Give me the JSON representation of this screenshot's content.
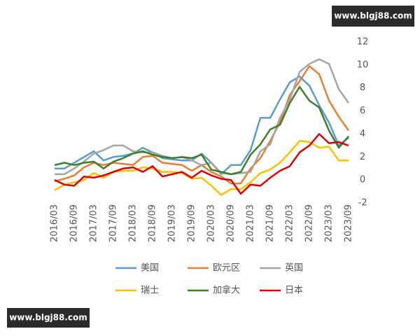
{
  "watermarks": [
    "www.blgj88.com",
    "www.blgj88.com"
  ],
  "chart_data": {
    "type": "line",
    "categories": [
      "2016/03",
      null,
      "2016/09",
      null,
      "2017/03",
      null,
      "2017/09",
      null,
      "2018/03",
      null,
      "2018/09",
      null,
      "2019/03",
      null,
      "2019/09",
      null,
      "2020/03",
      null,
      "2020/09",
      null,
      "2021/03",
      null,
      "2021/09",
      null,
      "2022/03",
      null,
      "2022/09",
      null,
      "2023/03",
      null,
      "2023/09"
    ],
    "ylim": [
      -2,
      12
    ],
    "yticks": [
      -2,
      0,
      2,
      4,
      6,
      8,
      10,
      12
    ],
    "grid": false,
    "series": [
      {
        "name": "美国",
        "color": "#5b9bd5",
        "values": [
          1.0,
          1.0,
          1.5,
          2.0,
          2.5,
          1.7,
          2.0,
          2.1,
          2.3,
          2.8,
          2.4,
          1.9,
          1.8,
          1.7,
          1.7,
          2.3,
          1.5,
          0.5,
          1.3,
          1.3,
          2.6,
          5.4,
          5.4,
          7.0,
          8.5,
          9.0,
          8.2,
          6.5,
          5.0,
          3.0,
          3.7
        ]
      },
      {
        "name": "欧元区",
        "color": "#ed7d31",
        "values": [
          -0.1,
          0.1,
          0.4,
          1.1,
          1.5,
          1.3,
          1.5,
          1.4,
          1.3,
          2.0,
          2.1,
          1.5,
          1.4,
          1.3,
          0.8,
          1.3,
          0.7,
          0.3,
          -0.3,
          -0.3,
          1.0,
          1.9,
          3.4,
          5.0,
          7.4,
          8.6,
          9.9,
          9.2,
          6.9,
          5.5,
          4.3
        ]
      },
      {
        "name": "英国",
        "color": "#a5a5a5",
        "values": [
          0.5,
          0.5,
          1.0,
          1.6,
          2.3,
          2.6,
          3.0,
          3.0,
          2.5,
          2.4,
          2.4,
          2.1,
          1.9,
          2.0,
          1.7,
          1.3,
          1.5,
          0.6,
          0.5,
          0.6,
          0.7,
          2.5,
          3.1,
          5.4,
          7.0,
          9.4,
          10.1,
          10.5,
          10.1,
          7.9,
          6.7
        ]
      },
      {
        "name": "瑞士",
        "color": "#ffc000",
        "values": [
          -0.9,
          -0.4,
          -0.2,
          0.0,
          0.6,
          0.2,
          0.7,
          0.8,
          0.8,
          1.1,
          1.0,
          0.7,
          0.7,
          0.6,
          0.1,
          0.2,
          -0.5,
          -1.3,
          -0.8,
          -0.8,
          -0.2,
          0.6,
          0.9,
          1.5,
          2.4,
          3.4,
          3.3,
          2.8,
          2.9,
          1.7,
          1.7
        ]
      },
      {
        "name": "加拿大",
        "color": "#3f7f2a",
        "values": [
          1.3,
          1.5,
          1.3,
          1.5,
          1.6,
          1.0,
          1.6,
          1.9,
          2.3,
          2.5,
          2.2,
          2.0,
          1.9,
          2.0,
          1.9,
          2.2,
          0.9,
          0.7,
          0.5,
          0.7,
          2.2,
          3.1,
          4.4,
          4.8,
          6.7,
          8.1,
          6.9,
          6.3,
          4.3,
          2.8,
          3.8
        ]
      },
      {
        "name": "日本",
        "color": "#e00000",
        "values": [
          0.0,
          -0.4,
          -0.5,
          0.3,
          0.2,
          0.4,
          0.7,
          1.0,
          1.1,
          0.7,
          1.2,
          0.3,
          0.5,
          0.7,
          0.2,
          0.8,
          0.4,
          0.1,
          0.0,
          -1.2,
          -0.4,
          -0.5,
          0.2,
          0.8,
          1.2,
          2.4,
          3.0,
          4.0,
          3.2,
          3.3,
          3.0
        ]
      }
    ]
  }
}
